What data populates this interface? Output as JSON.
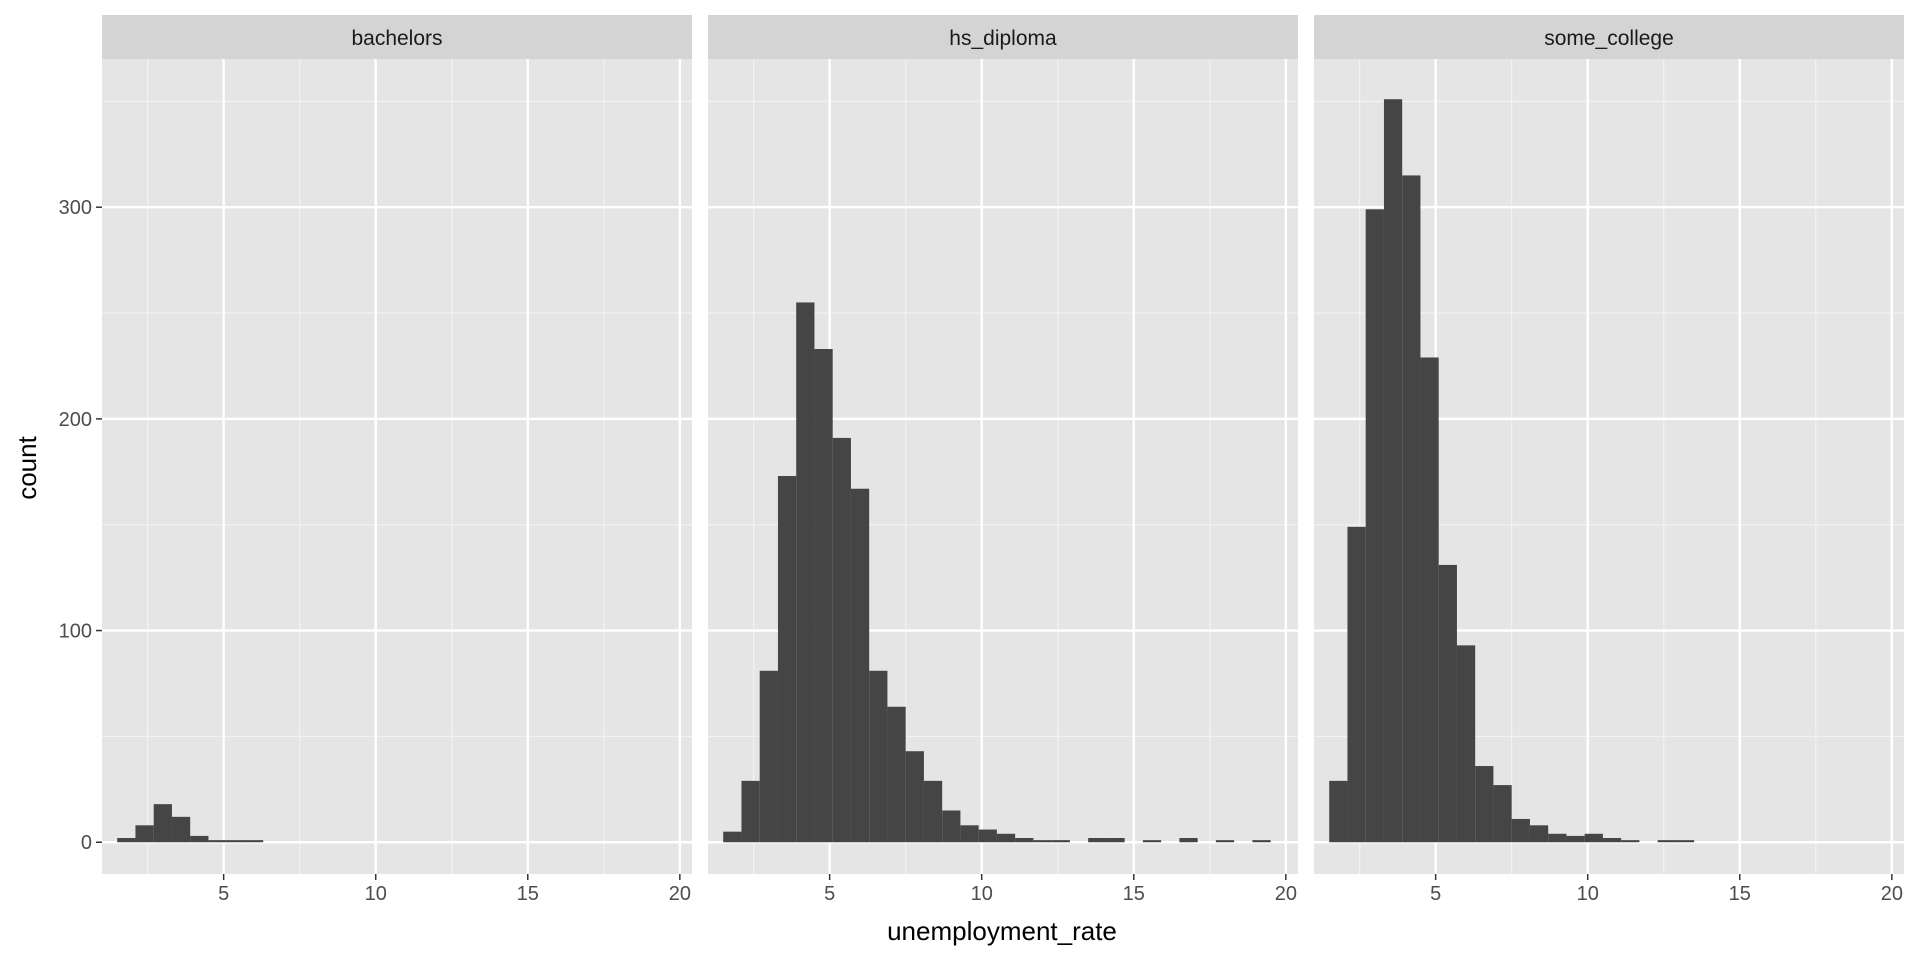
{
  "chart_data": {
    "type": "bar",
    "subtype": "faceted-histogram",
    "title": "",
    "xlabel": "unemployment_rate",
    "ylabel": "count",
    "xlim": [
      1.0,
      20.4
    ],
    "ylim": [
      -15,
      370
    ],
    "x_ticks": [
      5,
      10,
      15,
      20
    ],
    "y_ticks": [
      0,
      100,
      200,
      300
    ],
    "bin_width": 0.6,
    "grid": true,
    "facets": [
      {
        "name": "bachelors",
        "bins": [
          {
            "x": 1.8,
            "count": 2
          },
          {
            "x": 2.4,
            "count": 8
          },
          {
            "x": 3.0,
            "count": 18
          },
          {
            "x": 3.6,
            "count": 12
          },
          {
            "x": 4.2,
            "count": 3
          },
          {
            "x": 4.8,
            "count": 1
          },
          {
            "x": 5.4,
            "count": 1
          },
          {
            "x": 6.0,
            "count": 1
          }
        ]
      },
      {
        "name": "hs_diploma",
        "bins": [
          {
            "x": 1.8,
            "count": 5
          },
          {
            "x": 2.4,
            "count": 29
          },
          {
            "x": 3.0,
            "count": 81
          },
          {
            "x": 3.6,
            "count": 173
          },
          {
            "x": 4.2,
            "count": 255
          },
          {
            "x": 4.8,
            "count": 233
          },
          {
            "x": 5.4,
            "count": 191
          },
          {
            "x": 6.0,
            "count": 167
          },
          {
            "x": 6.6,
            "count": 81
          },
          {
            "x": 7.2,
            "count": 64
          },
          {
            "x": 7.8,
            "count": 43
          },
          {
            "x": 8.4,
            "count": 29
          },
          {
            "x": 9.0,
            "count": 15
          },
          {
            "x": 9.6,
            "count": 8
          },
          {
            "x": 10.2,
            "count": 6
          },
          {
            "x": 10.8,
            "count": 4
          },
          {
            "x": 11.4,
            "count": 2
          },
          {
            "x": 12.0,
            "count": 1
          },
          {
            "x": 12.6,
            "count": 1
          },
          {
            "x": 13.8,
            "count": 2
          },
          {
            "x": 14.4,
            "count": 2
          },
          {
            "x": 15.6,
            "count": 1
          },
          {
            "x": 16.8,
            "count": 2
          },
          {
            "x": 18.0,
            "count": 1
          },
          {
            "x": 19.2,
            "count": 1
          }
        ]
      },
      {
        "name": "some_college",
        "bins": [
          {
            "x": 1.8,
            "count": 29
          },
          {
            "x": 2.4,
            "count": 149
          },
          {
            "x": 3.0,
            "count": 299
          },
          {
            "x": 3.6,
            "count": 351
          },
          {
            "x": 4.2,
            "count": 315
          },
          {
            "x": 4.8,
            "count": 229
          },
          {
            "x": 5.4,
            "count": 131
          },
          {
            "x": 6.0,
            "count": 93
          },
          {
            "x": 6.6,
            "count": 36
          },
          {
            "x": 7.2,
            "count": 27
          },
          {
            "x": 7.8,
            "count": 11
          },
          {
            "x": 8.4,
            "count": 8
          },
          {
            "x": 9.0,
            "count": 4
          },
          {
            "x": 9.6,
            "count": 3
          },
          {
            "x": 10.2,
            "count": 4
          },
          {
            "x": 10.8,
            "count": 2
          },
          {
            "x": 11.4,
            "count": 1
          },
          {
            "x": 12.6,
            "count": 1
          },
          {
            "x": 13.2,
            "count": 1
          }
        ]
      }
    ],
    "colors": {
      "bar": "#454545",
      "panel_bg": "#e5e5e5",
      "strip_bg": "#d4d4d4",
      "grid_major": "#ffffff",
      "grid_minor": "#f2f2f2"
    }
  }
}
